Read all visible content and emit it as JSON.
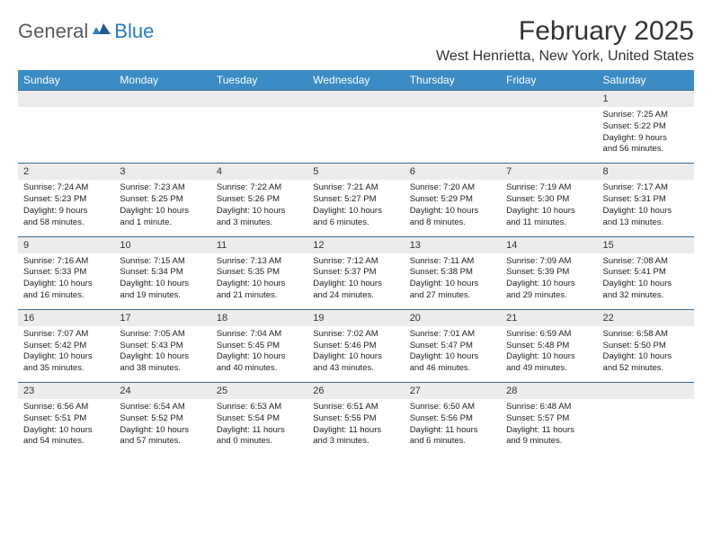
{
  "logo": {
    "text1": "General",
    "text2": "Blue"
  },
  "title": "February 2025",
  "location": "West Henrietta, New York, United States",
  "colors": {
    "header_bg": "#3b8bc4",
    "header_text": "#ffffff",
    "daynum_bg": "#ececec",
    "week_border": "#3b6a8f",
    "body_text": "#222222",
    "logo_general": "#5a5a5a",
    "logo_blue": "#2a7ac0"
  },
  "typography": {
    "title_fontsize": 30,
    "location_fontsize": 16,
    "dayheader_fontsize": 12,
    "daynum_fontsize": 11,
    "cell_fontsize": 9.5
  },
  "day_headers": [
    "Sunday",
    "Monday",
    "Tuesday",
    "Wednesday",
    "Thursday",
    "Friday",
    "Saturday"
  ],
  "weeks": [
    [
      {
        "num": "",
        "lines": []
      },
      {
        "num": "",
        "lines": []
      },
      {
        "num": "",
        "lines": []
      },
      {
        "num": "",
        "lines": []
      },
      {
        "num": "",
        "lines": []
      },
      {
        "num": "",
        "lines": []
      },
      {
        "num": "1",
        "lines": [
          "Sunrise: 7:25 AM",
          "Sunset: 5:22 PM",
          "Daylight: 9 hours",
          "and 56 minutes."
        ]
      }
    ],
    [
      {
        "num": "2",
        "lines": [
          "Sunrise: 7:24 AM",
          "Sunset: 5:23 PM",
          "Daylight: 9 hours",
          "and 58 minutes."
        ]
      },
      {
        "num": "3",
        "lines": [
          "Sunrise: 7:23 AM",
          "Sunset: 5:25 PM",
          "Daylight: 10 hours",
          "and 1 minute."
        ]
      },
      {
        "num": "4",
        "lines": [
          "Sunrise: 7:22 AM",
          "Sunset: 5:26 PM",
          "Daylight: 10 hours",
          "and 3 minutes."
        ]
      },
      {
        "num": "5",
        "lines": [
          "Sunrise: 7:21 AM",
          "Sunset: 5:27 PM",
          "Daylight: 10 hours",
          "and 6 minutes."
        ]
      },
      {
        "num": "6",
        "lines": [
          "Sunrise: 7:20 AM",
          "Sunset: 5:29 PM",
          "Daylight: 10 hours",
          "and 8 minutes."
        ]
      },
      {
        "num": "7",
        "lines": [
          "Sunrise: 7:19 AM",
          "Sunset: 5:30 PM",
          "Daylight: 10 hours",
          "and 11 minutes."
        ]
      },
      {
        "num": "8",
        "lines": [
          "Sunrise: 7:17 AM",
          "Sunset: 5:31 PM",
          "Daylight: 10 hours",
          "and 13 minutes."
        ]
      }
    ],
    [
      {
        "num": "9",
        "lines": [
          "Sunrise: 7:16 AM",
          "Sunset: 5:33 PM",
          "Daylight: 10 hours",
          "and 16 minutes."
        ]
      },
      {
        "num": "10",
        "lines": [
          "Sunrise: 7:15 AM",
          "Sunset: 5:34 PM",
          "Daylight: 10 hours",
          "and 19 minutes."
        ]
      },
      {
        "num": "11",
        "lines": [
          "Sunrise: 7:13 AM",
          "Sunset: 5:35 PM",
          "Daylight: 10 hours",
          "and 21 minutes."
        ]
      },
      {
        "num": "12",
        "lines": [
          "Sunrise: 7:12 AM",
          "Sunset: 5:37 PM",
          "Daylight: 10 hours",
          "and 24 minutes."
        ]
      },
      {
        "num": "13",
        "lines": [
          "Sunrise: 7:11 AM",
          "Sunset: 5:38 PM",
          "Daylight: 10 hours",
          "and 27 minutes."
        ]
      },
      {
        "num": "14",
        "lines": [
          "Sunrise: 7:09 AM",
          "Sunset: 5:39 PM",
          "Daylight: 10 hours",
          "and 29 minutes."
        ]
      },
      {
        "num": "15",
        "lines": [
          "Sunrise: 7:08 AM",
          "Sunset: 5:41 PM",
          "Daylight: 10 hours",
          "and 32 minutes."
        ]
      }
    ],
    [
      {
        "num": "16",
        "lines": [
          "Sunrise: 7:07 AM",
          "Sunset: 5:42 PM",
          "Daylight: 10 hours",
          "and 35 minutes."
        ]
      },
      {
        "num": "17",
        "lines": [
          "Sunrise: 7:05 AM",
          "Sunset: 5:43 PM",
          "Daylight: 10 hours",
          "and 38 minutes."
        ]
      },
      {
        "num": "18",
        "lines": [
          "Sunrise: 7:04 AM",
          "Sunset: 5:45 PM",
          "Daylight: 10 hours",
          "and 40 minutes."
        ]
      },
      {
        "num": "19",
        "lines": [
          "Sunrise: 7:02 AM",
          "Sunset: 5:46 PM",
          "Daylight: 10 hours",
          "and 43 minutes."
        ]
      },
      {
        "num": "20",
        "lines": [
          "Sunrise: 7:01 AM",
          "Sunset: 5:47 PM",
          "Daylight: 10 hours",
          "and 46 minutes."
        ]
      },
      {
        "num": "21",
        "lines": [
          "Sunrise: 6:59 AM",
          "Sunset: 5:48 PM",
          "Daylight: 10 hours",
          "and 49 minutes."
        ]
      },
      {
        "num": "22",
        "lines": [
          "Sunrise: 6:58 AM",
          "Sunset: 5:50 PM",
          "Daylight: 10 hours",
          "and 52 minutes."
        ]
      }
    ],
    [
      {
        "num": "23",
        "lines": [
          "Sunrise: 6:56 AM",
          "Sunset: 5:51 PM",
          "Daylight: 10 hours",
          "and 54 minutes."
        ]
      },
      {
        "num": "24",
        "lines": [
          "Sunrise: 6:54 AM",
          "Sunset: 5:52 PM",
          "Daylight: 10 hours",
          "and 57 minutes."
        ]
      },
      {
        "num": "25",
        "lines": [
          "Sunrise: 6:53 AM",
          "Sunset: 5:54 PM",
          "Daylight: 11 hours",
          "and 0 minutes."
        ]
      },
      {
        "num": "26",
        "lines": [
          "Sunrise: 6:51 AM",
          "Sunset: 5:55 PM",
          "Daylight: 11 hours",
          "and 3 minutes."
        ]
      },
      {
        "num": "27",
        "lines": [
          "Sunrise: 6:50 AM",
          "Sunset: 5:56 PM",
          "Daylight: 11 hours",
          "and 6 minutes."
        ]
      },
      {
        "num": "28",
        "lines": [
          "Sunrise: 6:48 AM",
          "Sunset: 5:57 PM",
          "Daylight: 11 hours",
          "and 9 minutes."
        ]
      },
      {
        "num": "",
        "lines": []
      }
    ]
  ]
}
